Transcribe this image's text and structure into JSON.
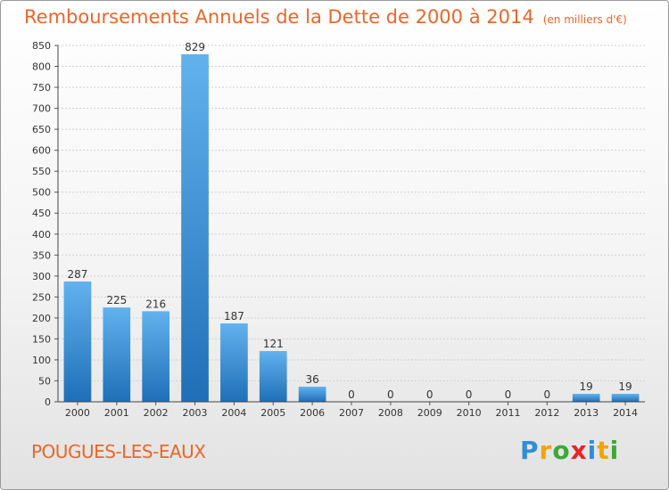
{
  "header": {
    "title": "Remboursements Annuels de la Dette de 2000 à 2014",
    "unit": "(en milliers d'€)"
  },
  "footer": {
    "commune": "POUGUES-LES-EAUX",
    "logo_letters": [
      "P",
      "r",
      "o",
      "x",
      "i",
      "t",
      "i"
    ],
    "logo_colors": [
      "#2e8fd6",
      "#f0a500",
      "#3aaa35",
      "#e8242a",
      "#2e8fd6",
      "#f0a500",
      "#3aaa35"
    ]
  },
  "chart_data": {
    "type": "bar",
    "title": "Remboursements Annuels de la Dette de 2000 à 2014",
    "subtitle": "(en milliers d'€)",
    "categories": [
      "2000",
      "2001",
      "2002",
      "2003",
      "2004",
      "2005",
      "2006",
      "2007",
      "2008",
      "2009",
      "2010",
      "2011",
      "2012",
      "2013",
      "2014"
    ],
    "values": [
      287,
      225,
      216,
      829,
      187,
      121,
      36,
      0,
      0,
      0,
      0,
      0,
      0,
      19,
      19
    ],
    "ylim": [
      0,
      850
    ],
    "ytick_step": 50,
    "grid": true,
    "bar_color": "#3a8fd8",
    "bar_color_light": "#62b2ee",
    "bar_color_dark": "#1f6fb8"
  }
}
